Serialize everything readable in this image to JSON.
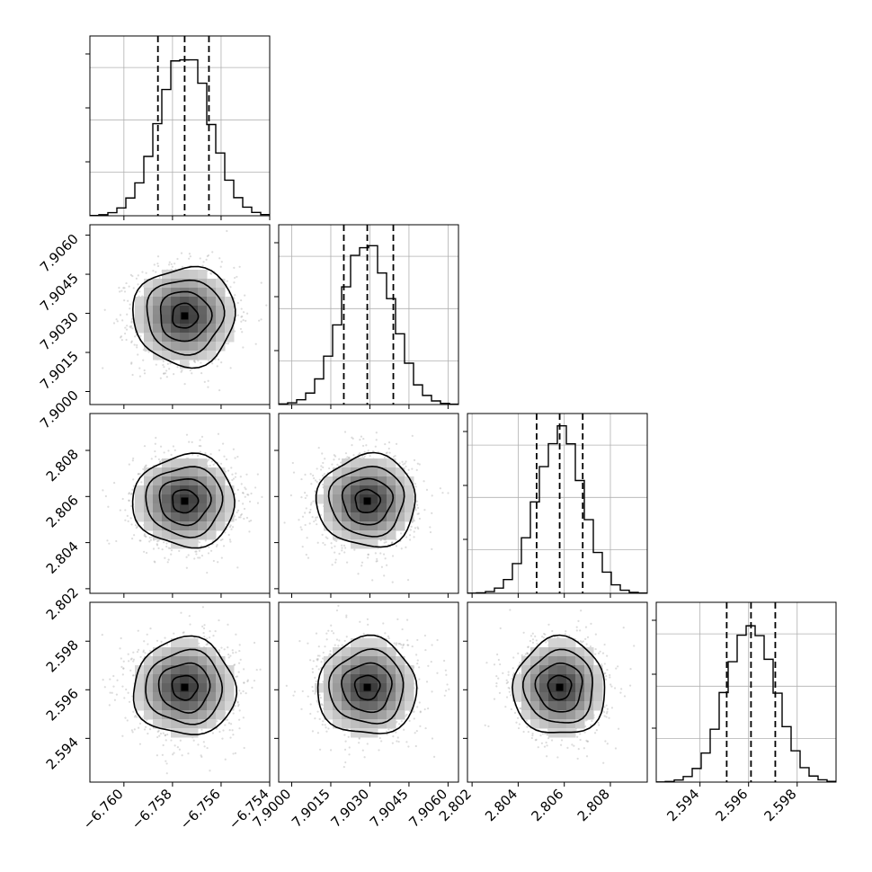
{
  "chart_data": {
    "type": "corner",
    "n_params": 4,
    "params": [
      {
        "index": 0,
        "label": "",
        "mean": -6.7575,
        "sigma": 0.00105,
        "range": [
          -6.7614,
          -6.754
        ],
        "ticks": [
          -6.76,
          -6.758,
          -6.756,
          -6.754
        ],
        "tick_labels": [
          "−6.760",
          "−6.758",
          "−6.756",
          "−6.754"
        ],
        "quantiles": [
          -6.7586,
          -6.7575,
          -6.7565
        ]
      },
      {
        "index": 1,
        "label": "",
        "mean": 7.9029,
        "sigma": 0.00095,
        "range": [
          7.8995,
          7.9064
        ],
        "ticks": [
          7.9,
          7.9015,
          7.903,
          7.9045,
          7.906
        ],
        "tick_labels": [
          "7.9000",
          "7.9015",
          "7.9030",
          "7.9045",
          "7.9060"
        ],
        "quantiles": [
          7.902,
          7.9029,
          7.9039
        ]
      },
      {
        "index": 2,
        "label": "",
        "mean": 2.8058,
        "sigma": 0.001,
        "range": [
          2.8018,
          2.8096
        ],
        "ticks": [
          2.802,
          2.804,
          2.806,
          2.808
        ],
        "tick_labels": [
          "2.802",
          "2.804",
          "2.806",
          "2.808"
        ],
        "quantiles": [
          2.8048,
          2.8058,
          2.8068
        ]
      },
      {
        "index": 3,
        "label": "",
        "mean": 2.5961,
        "sigma": 0.001,
        "range": [
          2.5922,
          2.5996
        ],
        "ticks": [
          2.594,
          2.596,
          2.598
        ],
        "tick_labels": [
          "2.594",
          "2.596",
          "2.598"
        ],
        "quantiles": [
          2.5951,
          2.5961,
          2.5971
        ]
      }
    ],
    "quantile_levels": [
      0.16,
      0.5,
      0.84
    ],
    "histogram_bins": 20,
    "contour_sigma_levels": [
      0.5,
      1.0,
      1.5,
      2.0
    ],
    "grid": true,
    "colors": {
      "hist": "#000000",
      "contour": "#000000",
      "points": "#9a9a9a",
      "density_max": "#111111",
      "grid": "#b0b0b0"
    }
  }
}
